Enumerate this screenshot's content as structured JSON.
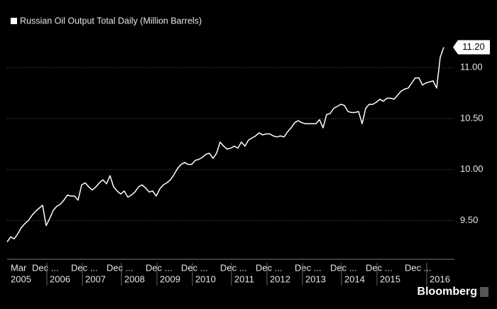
{
  "chart_data": {
    "type": "line",
    "title": "Russian Oil Output Total Daily (Million Barrels)",
    "source": "Bloomberg",
    "series": [
      {
        "name": "Russian Oil Output Total Daily (Million Barrels)",
        "color": "#ffffff",
        "values": [
          9.29,
          9.34,
          9.32,
          9.37,
          9.43,
          9.47,
          9.5,
          9.55,
          9.59,
          9.62,
          9.65,
          9.45,
          9.52,
          9.6,
          9.64,
          9.66,
          9.7,
          9.75,
          9.74,
          9.74,
          9.7,
          9.85,
          9.87,
          9.83,
          9.8,
          9.83,
          9.87,
          9.9,
          9.86,
          9.94,
          9.83,
          9.79,
          9.76,
          9.79,
          9.73,
          9.75,
          9.78,
          9.83,
          9.85,
          9.82,
          9.78,
          9.79,
          9.74,
          9.81,
          9.85,
          9.87,
          9.9,
          9.95,
          10.01,
          10.05,
          10.07,
          10.05,
          10.05,
          10.09,
          10.1,
          10.12,
          10.15,
          10.16,
          10.11,
          10.16,
          10.27,
          10.23,
          10.2,
          10.21,
          10.23,
          10.21,
          10.27,
          10.23,
          10.29,
          10.31,
          10.33,
          10.36,
          10.34,
          10.35,
          10.35,
          10.33,
          10.32,
          10.33,
          10.32,
          10.37,
          10.41,
          10.46,
          10.48,
          10.46,
          10.45,
          10.45,
          10.45,
          10.45,
          10.49,
          10.41,
          10.54,
          10.55,
          10.6,
          10.62,
          10.64,
          10.63,
          10.57,
          10.56,
          10.56,
          10.57,
          10.45,
          10.6,
          10.64,
          10.64,
          10.66,
          10.69,
          10.67,
          10.7,
          10.7,
          10.69,
          10.73,
          10.77,
          10.79,
          10.8,
          10.85,
          10.9,
          10.9,
          10.83,
          10.85,
          10.86,
          10.87,
          10.8,
          11.1,
          11.2
        ]
      }
    ],
    "last_value_label": "11.20",
    "xlim": [
      0,
      123
    ],
    "xticks": [
      {
        "value": 1,
        "label": "Mar"
      },
      {
        "value": 7,
        "label": "Dec ..."
      },
      {
        "value": 18,
        "label": "Dec ..."
      },
      {
        "value": 28,
        "label": "Dec ..."
      },
      {
        "value": 39,
        "label": "Dec ..."
      },
      {
        "value": 49,
        "label": "Dec ..."
      },
      {
        "value": 60,
        "label": "Dec ..."
      },
      {
        "value": 70,
        "label": "Dec ..."
      },
      {
        "value": 81,
        "label": "Dec ..."
      },
      {
        "value": 91,
        "label": "Dec ..."
      },
      {
        "value": 101,
        "label": "Dec ..."
      },
      {
        "value": 112,
        "label": "Dec ..."
      }
    ],
    "year_ticks": [
      {
        "value": 1,
        "label": "2005"
      },
      {
        "value": 12,
        "label": "2006"
      },
      {
        "value": 22,
        "label": "2007"
      },
      {
        "value": 33,
        "label": "2008"
      },
      {
        "value": 43,
        "label": "2009"
      },
      {
        "value": 53,
        "label": "2010"
      },
      {
        "value": 64,
        "label": "2011"
      },
      {
        "value": 74,
        "label": "2012"
      },
      {
        "value": 84,
        "label": "2013"
      },
      {
        "value": 95,
        "label": "2014"
      },
      {
        "value": 105,
        "label": "2015"
      },
      {
        "value": 119,
        "label": "2016"
      }
    ],
    "ylim": [
      9.12,
      11.35
    ],
    "yticks": [
      {
        "value": 9.5,
        "label": "9.50"
      },
      {
        "value": 10,
        "label": "10.00"
      },
      {
        "value": 10.5,
        "label": "10.50"
      },
      {
        "value": 11,
        "label": "11.00"
      }
    ],
    "grid": true
  }
}
